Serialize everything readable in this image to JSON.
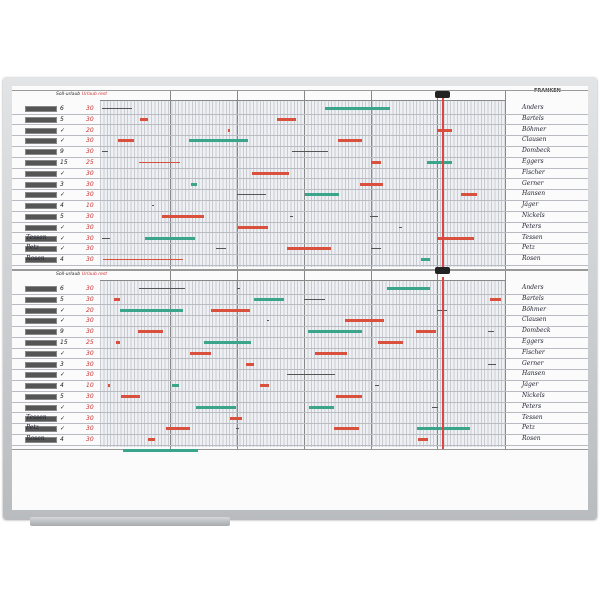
{
  "brand": "FRANKEN",
  "columns": {
    "planned": "Soll-urlaub",
    "remaining": "Urlaub rest"
  },
  "colors": {
    "red": "#d9503c",
    "green": "#3aa58a",
    "line": "#555555",
    "today": "#dd4444"
  },
  "panels": [
    {
      "names_left": [
        "",
        "",
        "",
        "",
        "",
        "",
        "",
        "",
        "",
        "",
        "",
        "",
        "Tessen",
        "Petz",
        "Rosen"
      ],
      "planned": [
        "6",
        "5",
        "✓",
        "✓",
        "9",
        "15",
        "✓",
        "3",
        "✓",
        "4",
        "5",
        "✓",
        "✓",
        "✓",
        "4"
      ],
      "remaining": [
        "30",
        "30",
        "20",
        "30",
        "30",
        "25",
        "30",
        "30",
        "30",
        "10",
        "30",
        "30",
        "30",
        "30",
        "30"
      ],
      "names_right": [
        "Anders",
        "Bartels",
        "Böhmer",
        "Clausen",
        "Dombeck",
        "Eggers",
        "Fischer",
        "Gerner",
        "Hansen",
        "Jäger",
        "Nickels",
        "Peters",
        "Tessen",
        "Petz",
        "Rosen"
      ]
    },
    {
      "names_left": [
        "",
        "",
        "",
        "",
        "",
        "",
        "",
        "",
        "",
        "",
        "",
        "",
        "Tessen",
        "Petz",
        "Rosen"
      ],
      "planned": [
        "6",
        "5",
        "✓",
        "✓",
        "9",
        "15",
        "✓",
        "3",
        "✓",
        "4",
        "5",
        "✓",
        "✓",
        "✓",
        "4"
      ],
      "remaining": [
        "30",
        "30",
        "20",
        "30",
        "30",
        "25",
        "30",
        "30",
        "30",
        "10",
        "30",
        "30",
        "30",
        "30",
        "30"
      ],
      "names_right": [
        "Anders",
        "Bartels",
        "Böhmer",
        "Clausen",
        "Dombeck",
        "Eggers",
        "Fischer",
        "Gerner",
        "Hansen",
        "Jäger",
        "Nickels",
        "Peters",
        "Tessen",
        "Petz",
        "Rosen"
      ]
    }
  ]
}
